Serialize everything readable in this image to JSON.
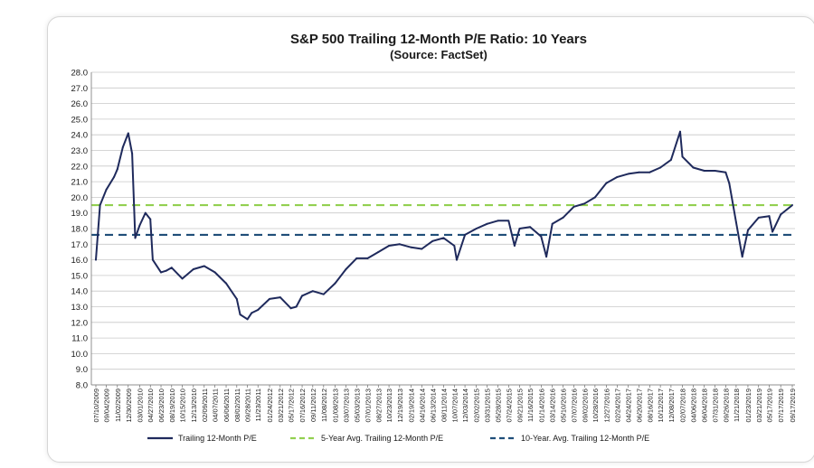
{
  "chart_data": {
    "type": "line",
    "title": "S&P 500 Trailing 12-Month P/E Ratio: 10 Years",
    "subtitle": "(Source: FactSet)",
    "xlabel": "",
    "ylabel": "",
    "ylim": [
      8.0,
      28.0
    ],
    "y_ticks": [
      "8.0",
      "9.0",
      "10.0",
      "11.0",
      "12.0",
      "13.0",
      "14.0",
      "15.0",
      "16.0",
      "17.0",
      "18.0",
      "19.0",
      "20.0",
      "21.0",
      "22.0",
      "23.0",
      "24.0",
      "25.0",
      "26.0",
      "27.0",
      "28.0"
    ],
    "x_ticks": [
      "07/10/2009",
      "09/04/2009",
      "11/02/2009",
      "12/30/2009",
      "03/01/2010",
      "04/27/2010",
      "06/23/2010",
      "08/19/2010",
      "10/15/2010",
      "12/13/2010",
      "02/09/2011",
      "04/07/2011",
      "06/06/2011",
      "08/02/2011",
      "09/28/2011",
      "11/23/2011",
      "01/24/2012",
      "03/21/2012",
      "05/17/2012",
      "07/16/2012",
      "09/11/2012",
      "11/08/2012",
      "01/08/2013",
      "03/07/2013",
      "05/03/2013",
      "07/01/2013",
      "08/27/2013",
      "10/23/2013",
      "12/19/2013",
      "02/19/2014",
      "04/16/2014",
      "06/13/2014",
      "08/11/2014",
      "10/07/2014",
      "12/03/2014",
      "02/02/2015",
      "03/31/2015",
      "05/28/2015",
      "07/24/2015",
      "09/21/2015",
      "11/16/2015",
      "01/14/2016",
      "03/14/2016",
      "05/10/2016",
      "07/07/2016",
      "09/02/2016",
      "10/28/2016",
      "12/27/2016",
      "02/24/2017",
      "04/24/2017",
      "06/20/2017",
      "08/16/2017",
      "10/12/2017",
      "12/08/2017",
      "02/07/2018",
      "04/06/2018",
      "06/04/2018",
      "07/31/2018",
      "09/26/2018",
      "11/21/2018",
      "01/23/2019",
      "03/21/2019",
      "05/17/2019",
      "07/17/2019",
      "09/17/2019"
    ],
    "grid": true,
    "legend_position": "bottom",
    "series": [
      {
        "name": "Trailing 12-Month P/E",
        "color": "#1f2a5c",
        "style": "solid",
        "x": [
          "07/10/2009",
          "08/01/2009",
          "09/04/2009",
          "10/15/2009",
          "11/02/2009",
          "12/01/2009",
          "12/30/2009",
          "01/20/2010",
          "02/05/2010",
          "03/01/2010",
          "04/01/2010",
          "04/27/2010",
          "05/10/2010",
          "06/23/2010",
          "07/20/2010",
          "08/19/2010",
          "10/15/2010",
          "12/13/2010",
          "02/09/2011",
          "04/07/2011",
          "06/06/2011",
          "08/02/2011",
          "08/20/2011",
          "09/28/2011",
          "10/20/2011",
          "11/23/2011",
          "01/24/2012",
          "03/21/2012",
          "05/17/2012",
          "06/15/2012",
          "07/16/2012",
          "09/11/2012",
          "11/08/2012",
          "01/08/2013",
          "03/07/2013",
          "05/03/2013",
          "07/01/2013",
          "08/27/2013",
          "10/23/2013",
          "12/19/2013",
          "02/19/2014",
          "04/16/2014",
          "06/13/2014",
          "08/11/2014",
          "10/07/2014",
          "10/20/2014",
          "12/03/2014",
          "02/02/2015",
          "03/31/2015",
          "05/28/2015",
          "07/24/2015",
          "08/25/2015",
          "09/21/2015",
          "11/16/2015",
          "01/14/2016",
          "02/11/2016",
          "03/14/2016",
          "05/10/2016",
          "07/07/2016",
          "09/02/2016",
          "10/28/2016",
          "12/27/2016",
          "02/24/2017",
          "04/24/2017",
          "06/20/2017",
          "08/16/2017",
          "10/12/2017",
          "12/08/2017",
          "01/26/2018",
          "02/07/2018",
          "04/06/2018",
          "06/04/2018",
          "07/31/2018",
          "09/26/2018",
          "10/15/2018",
          "11/21/2018",
          "12/24/2018",
          "01/23/2019",
          "03/21/2019",
          "05/17/2019",
          "06/03/2019",
          "07/17/2019",
          "09/17/2019"
        ],
        "values": [
          16.0,
          19.5,
          20.5,
          21.3,
          21.8,
          23.2,
          24.1,
          22.8,
          17.4,
          18.2,
          19.0,
          18.6,
          16.0,
          15.2,
          15.3,
          15.5,
          14.8,
          15.4,
          15.6,
          15.2,
          14.5,
          13.5,
          12.5,
          12.2,
          12.6,
          12.8,
          13.5,
          13.6,
          12.9,
          13.0,
          13.7,
          14.0,
          13.8,
          14.5,
          15.4,
          16.1,
          16.1,
          16.5,
          16.9,
          17.0,
          16.8,
          16.7,
          17.2,
          17.4,
          16.9,
          16.0,
          17.6,
          18.0,
          18.3,
          18.5,
          18.5,
          16.9,
          18.0,
          18.1,
          17.5,
          16.2,
          18.3,
          18.7,
          19.4,
          19.6,
          20.0,
          20.9,
          21.3,
          21.5,
          21.6,
          21.6,
          21.9,
          22.4,
          24.2,
          22.6,
          21.9,
          21.7,
          21.7,
          21.6,
          20.9,
          18.4,
          16.2,
          17.9,
          18.7,
          18.8,
          17.8,
          18.9,
          19.5
        ]
      },
      {
        "name": "5-Year Avg. Trailing 12-Month P/E",
        "color": "#92d050",
        "style": "dashed",
        "value": 19.5
      },
      {
        "name": "10-Year. Avg. Trailing 12-Month P/E",
        "color": "#1f4e79",
        "style": "dashed",
        "value": 17.6
      }
    ]
  }
}
